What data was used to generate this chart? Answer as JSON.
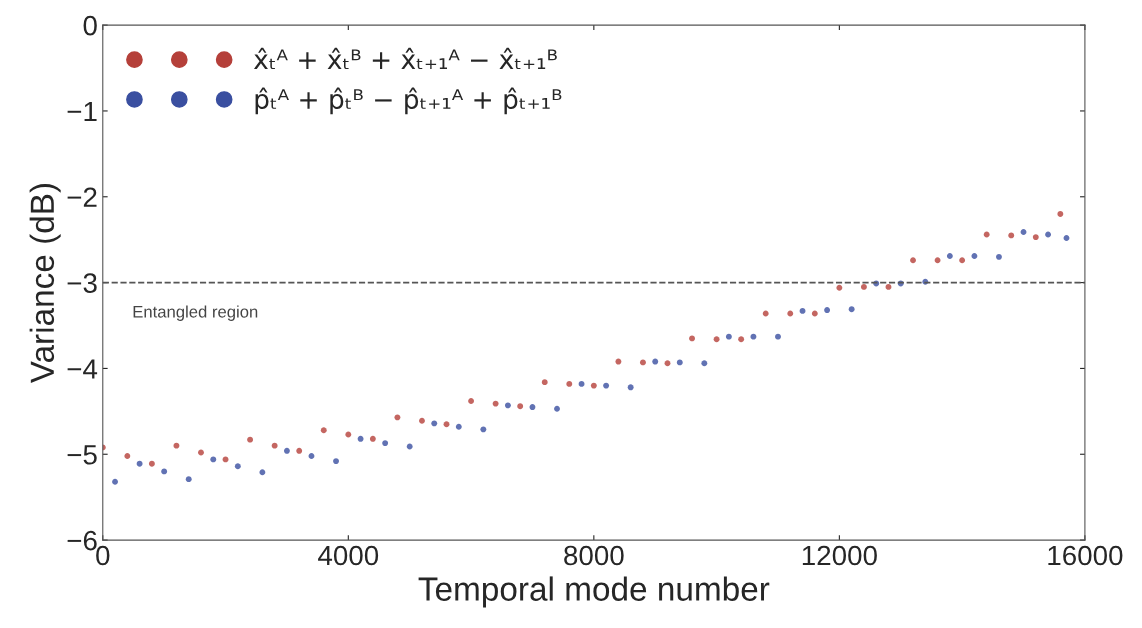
{
  "chart_data": {
    "type": "scatter",
    "xlabel": "Temporal mode number",
    "ylabel": "Variance (dB)",
    "xlim": [
      0,
      16000
    ],
    "ylim": [
      -6,
      0
    ],
    "xticks": [
      0,
      4000,
      8000,
      12000,
      16000
    ],
    "yticks": [
      {
        "value": -6,
        "label": "−6"
      },
      {
        "value": -5,
        "label": "−5"
      },
      {
        "value": -4,
        "label": "−4"
      },
      {
        "value": -3,
        "label": "−3"
      },
      {
        "value": -2,
        "label": "−2"
      },
      {
        "value": -1,
        "label": "−1"
      },
      0
    ],
    "grid": false,
    "legend": "top left",
    "marker": "circle",
    "ref_lines": [
      {
        "axis": "y",
        "value": -3,
        "label": "Entangled region",
        "color": "#555555",
        "line_style": "dashed"
      }
    ],
    "series": [
      {
        "name": "x̂ₜᴬ + x̂ₜᴮ + x̂ₜ₊₁ᴬ − x̂ₜ₊₁ᴮ",
        "color": "#b5403a",
        "x": [
          0,
          400,
          800,
          1200,
          1600,
          2000,
          2400,
          2800,
          3200,
          3600,
          4000,
          4400,
          4800,
          5200,
          5600,
          6000,
          6400,
          6800,
          7200,
          7600,
          8000,
          8400,
          8800,
          9200,
          9600,
          10000,
          10400,
          10800,
          11200,
          11600,
          12000,
          12400,
          12800,
          13200,
          13600,
          14000,
          14400,
          14800,
          15200,
          15600
        ],
        "values": [
          -4.92,
          -5.02,
          -5.11,
          -4.9,
          -4.98,
          -5.06,
          -4.83,
          -4.9,
          -4.96,
          -4.72,
          -4.77,
          -4.82,
          -4.57,
          -4.61,
          -4.65,
          -4.38,
          -4.41,
          -4.44,
          -4.16,
          -4.18,
          -4.2,
          -3.92,
          -3.93,
          -3.94,
          -3.65,
          -3.66,
          -3.66,
          -3.36,
          -3.36,
          -3.36,
          -3.06,
          -3.05,
          -3.05,
          -2.74,
          -2.74,
          -2.74,
          -2.44,
          -2.45,
          -2.47,
          -2.2
        ]
      },
      {
        "name": "p̂ₜᴬ + p̂ₜᴮ − p̂ₜ₊₁ᴬ + p̂ₜ₊₁ᴮ",
        "color": "#3a4fa0",
        "x": [
          200,
          600,
          1000,
          1400,
          1800,
          2200,
          2600,
          3000,
          3400,
          3800,
          4200,
          4600,
          5000,
          5400,
          5800,
          6200,
          6600,
          7000,
          7400,
          7800,
          8200,
          8600,
          9000,
          9400,
          9800,
          10200,
          10600,
          11000,
          11400,
          11800,
          12200,
          12600,
          13000,
          13400,
          13800,
          14200,
          14600,
          15000,
          15400,
          15700
        ],
        "values": [
          -5.32,
          -5.11,
          -5.2,
          -5.29,
          -5.06,
          -5.14,
          -5.21,
          -4.96,
          -5.02,
          -5.08,
          -4.82,
          -4.87,
          -4.91,
          -4.64,
          -4.68,
          -4.71,
          -4.43,
          -4.45,
          -4.47,
          -4.18,
          -4.2,
          -4.22,
          -3.92,
          -3.93,
          -3.94,
          -3.63,
          -3.63,
          -3.63,
          -3.33,
          -3.32,
          -3.31,
          -3.01,
          -3.01,
          -2.99,
          -2.69,
          -2.69,
          -2.7,
          -2.41,
          -2.44,
          -2.48
        ]
      }
    ]
  }
}
